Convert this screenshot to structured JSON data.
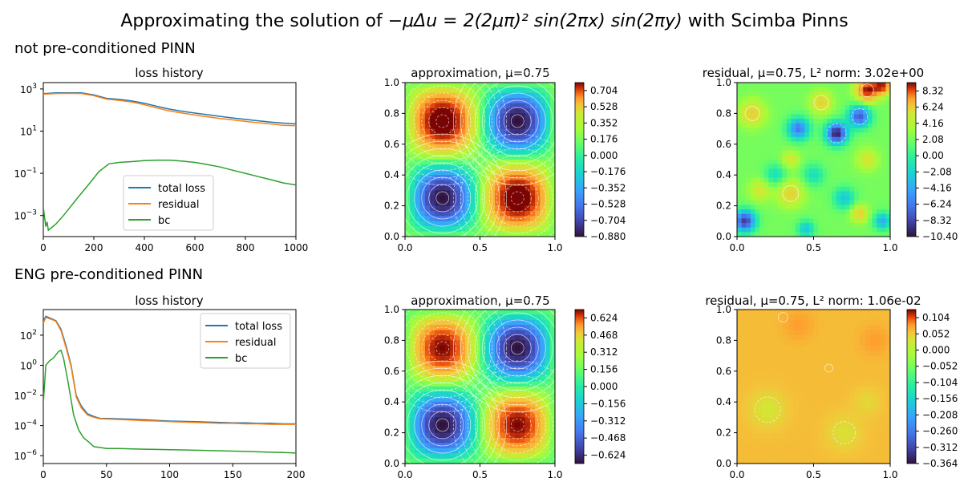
{
  "title": {
    "prefix": "Approximating the solution of ",
    "equation": "−μΔu = 2(2μπ)² sin(2πx) sin(2πy)",
    "suffix": " with Scimba Pinns"
  },
  "rows": [
    {
      "label": "not pre-conditioned PINN",
      "loss": {
        "title": "loss history",
        "xticks": [
          "0",
          "200",
          "400",
          "600",
          "800",
          "1000"
        ],
        "yticks": [
          "10",
          "10",
          "10",
          "10"
        ],
        "yexps": [
          "3",
          "1",
          "−1",
          "−3"
        ],
        "legend": [
          "total loss",
          "residual",
          "bc"
        ]
      },
      "approx": {
        "title": "approximation, μ=0.75",
        "xticks": [
          "0.0",
          "0.5",
          "1.0"
        ],
        "yticks": [
          "0.0",
          "0.2",
          "0.4",
          "0.6",
          "0.8",
          "1.0"
        ],
        "colorbar": [
          "0.704",
          "0.528",
          "0.352",
          "0.176",
          "0.000",
          "−0.176",
          "−0.352",
          "−0.528",
          "−0.704",
          "−0.880"
        ]
      },
      "resid": {
        "title": "residual, μ=0.75, L² norm: 3.02e+00",
        "xticks": [
          "0.0",
          "0.5",
          "1.0"
        ],
        "yticks": [
          "0.0",
          "0.2",
          "0.4",
          "0.6",
          "0.8",
          "1.0"
        ],
        "colorbar": [
          "8.32",
          "6.24",
          "4.16",
          "2.08",
          "0.00",
          "−2.08",
          "−4.16",
          "−6.24",
          "−8.32",
          "−10.40"
        ]
      }
    },
    {
      "label": "ENG pre-conditioned PINN",
      "loss": {
        "title": "loss history",
        "xticks": [
          "0",
          "50",
          "100",
          "150",
          "200"
        ],
        "yticks": [
          "10",
          "10",
          "10",
          "10",
          "10"
        ],
        "yexps": [
          "2",
          "0",
          "−2",
          "−4",
          "−6"
        ],
        "legend": [
          "total loss",
          "residual",
          "bc"
        ]
      },
      "approx": {
        "title": "approximation, μ=0.75",
        "xticks": [
          "0.0",
          "0.5",
          "1.0"
        ],
        "yticks": [
          "0.0",
          "0.2",
          "0.4",
          "0.6",
          "0.8",
          "1.0"
        ],
        "colorbar": [
          "0.624",
          "0.468",
          "0.312",
          "0.156",
          "0.000",
          "−0.156",
          "−0.312",
          "−0.468",
          "−0.624"
        ]
      },
      "resid": {
        "title": "residual, μ=0.75, L² norm: 1.06e-02",
        "xticks": [
          "0.0",
          "0.5",
          "1.0"
        ],
        "yticks": [
          "0.0",
          "0.2",
          "0.4",
          "0.6",
          "0.8",
          "1.0"
        ],
        "colorbar": [
          "0.104",
          "0.052",
          "0.000",
          "−0.052",
          "−0.104",
          "−0.156",
          "−0.208",
          "−0.260",
          "−0.312",
          "−0.364"
        ]
      }
    }
  ],
  "colors": {
    "total_loss": "#1f77b4",
    "residual": "#ff7f0e",
    "bc": "#2ca02c"
  },
  "chart_data": [
    {
      "type": "line",
      "title": "loss history",
      "yscale": "log",
      "xlim": [
        0,
        1000
      ],
      "ylim": [
        0.0001,
        2000
      ],
      "series": [
        {
          "name": "total loss",
          "x": [
            0,
            50,
            100,
            150,
            200,
            250,
            300,
            350,
            400,
            450,
            500,
            550,
            600,
            650,
            700,
            750,
            800,
            850,
            900,
            950,
            1000
          ],
          "values": [
            600,
            650,
            660,
            650,
            520,
            360,
            320,
            270,
            210,
            150,
            110,
            88,
            72,
            60,
            50,
            42,
            36,
            31,
            27,
            24,
            22
          ]
        },
        {
          "name": "residual",
          "x": [
            0,
            50,
            100,
            150,
            200,
            250,
            300,
            350,
            400,
            450,
            500,
            550,
            600,
            650,
            700,
            750,
            800,
            850,
            900,
            950,
            1000
          ],
          "values": [
            560,
            610,
            620,
            610,
            480,
            330,
            290,
            240,
            180,
            125,
            90,
            72,
            58,
            48,
            40,
            34,
            29,
            25,
            22,
            19,
            18
          ]
        },
        {
          "name": "bc",
          "x": [
            0,
            5,
            10,
            15,
            20,
            30,
            50,
            80,
            100,
            140,
            180,
            220,
            260,
            300,
            350,
            400,
            450,
            500,
            550,
            600,
            650,
            700,
            750,
            800,
            850,
            900,
            950,
            1000
          ],
          "values": [
            0.0025,
            0.0008,
            0.0003,
            0.0005,
            0.0002,
            0.00025,
            0.0004,
            0.001,
            0.002,
            0.008,
            0.03,
            0.12,
            0.28,
            0.33,
            0.36,
            0.4,
            0.42,
            0.42,
            0.38,
            0.33,
            0.26,
            0.2,
            0.14,
            0.1,
            0.07,
            0.05,
            0.035,
            0.028
          ]
        }
      ]
    },
    {
      "type": "heatmap",
      "title": "approximation, μ=0.75",
      "function": "-0.88*sin(2πx)*sin(2πy)",
      "xlim": [
        0,
        1
      ],
      "ylim": [
        0,
        1
      ],
      "zlim": [
        -0.88,
        0.79
      ]
    },
    {
      "type": "heatmap",
      "title": "residual, μ=0.75, L² norm: 3.02e+00",
      "xlim": [
        0,
        1
      ],
      "ylim": [
        0,
        1
      ],
      "zlim": [
        -10.4,
        9.4
      ],
      "l2_norm": 3.02
    },
    {
      "type": "line",
      "title": "loss history",
      "yscale": "log",
      "xlim": [
        0,
        200
      ],
      "ylim": [
        3e-07,
        5000
      ],
      "series": [
        {
          "name": "total loss",
          "x": [
            0,
            2,
            5,
            8,
            10,
            14,
            18,
            22,
            26,
            30,
            35,
            40,
            45,
            50,
            60,
            70,
            80,
            90,
            100,
            110,
            120,
            130,
            140,
            150,
            160,
            170,
            180,
            190,
            200
          ],
          "values": [
            800,
            1800,
            1400,
            1100,
            900,
            250,
            20,
            1,
            0.01,
            0.002,
            0.0006,
            0.0004,
            0.0003,
            0.0003,
            0.00028,
            0.00026,
            0.00024,
            0.00022,
            0.0002,
            0.00019,
            0.00018,
            0.00017,
            0.00016,
            0.00015,
            0.00015,
            0.00014,
            0.00014,
            0.00013,
            0.00013
          ]
        },
        {
          "name": "residual",
          "x": [
            0,
            2,
            5,
            8,
            10,
            14,
            18,
            22,
            26,
            30,
            35,
            40,
            45,
            50,
            60,
            70,
            80,
            90,
            100,
            110,
            120,
            130,
            140,
            150,
            160,
            170,
            180,
            190,
            200
          ],
          "values": [
            600,
            1500,
            1200,
            1000,
            800,
            200,
            15,
            0.8,
            0.008,
            0.0015,
            0.0005,
            0.00035,
            0.00028,
            0.00027,
            0.00025,
            0.00023,
            0.00021,
            0.0002,
            0.00018,
            0.00017,
            0.00016,
            0.00015,
            0.00014,
            0.00014,
            0.00013,
            0.00013,
            0.00012,
            0.00012,
            0.00012
          ]
        },
        {
          "name": "bc",
          "x": [
            0,
            2,
            5,
            8,
            10,
            12,
            14,
            16,
            20,
            24,
            28,
            32,
            36,
            40,
            50,
            60,
            70,
            80,
            90,
            100,
            110,
            120,
            130,
            140,
            150,
            160,
            170,
            180,
            190,
            200
          ],
          "values": [
            0.003,
            1,
            2,
            3,
            5,
            8,
            10,
            3,
            0.05,
            0.0005,
            5e-05,
            1.5e-05,
            8e-06,
            4e-06,
            3e-06,
            3e-06,
            2.8e-06,
            2.7e-06,
            2.6e-06,
            2.5e-06,
            2.4e-06,
            2.3e-06,
            2.2e-06,
            2.1e-06,
            2e-06,
            1.9e-06,
            1.8e-06,
            1.7e-06,
            1.6e-06,
            1.5e-06
          ]
        }
      ]
    },
    {
      "type": "heatmap",
      "title": "approximation, μ=0.75",
      "function": "-0.70*sin(2πx)*sin(2πy)",
      "xlim": [
        0,
        1
      ],
      "ylim": [
        0,
        1
      ],
      "zlim": [
        -0.7,
        0.7
      ]
    },
    {
      "type": "heatmap",
      "title": "residual, μ=0.75, L² norm: 1.06e-02",
      "xlim": [
        0,
        1
      ],
      "ylim": [
        0,
        1
      ],
      "zlim": [
        -0.364,
        0.13
      ],
      "l2_norm": 0.0106
    }
  ]
}
